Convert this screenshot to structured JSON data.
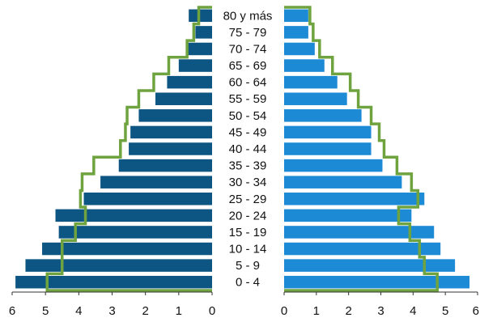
{
  "chart_data": {
    "type": "bar",
    "subtype": "population-pyramid",
    "title": "",
    "categories": [
      "80 y más",
      "75 - 79",
      "70 - 74",
      "65 - 69",
      "60 - 64",
      "55 - 59",
      "50 - 54",
      "45 - 49",
      "40 - 44",
      "35 - 39",
      "30 - 34",
      "25 - 29",
      "20 - 24",
      "15 - 19",
      "10 - 14",
      "5 - 9",
      "0 - 4"
    ],
    "left_panel": {
      "bars": [
        0.7,
        0.5,
        0.75,
        1.0,
        1.35,
        1.7,
        2.2,
        2.45,
        2.5,
        2.8,
        3.35,
        3.85,
        4.7,
        4.6,
        5.1,
        5.6,
        5.9
      ],
      "outline": [
        0.4,
        0.55,
        0.75,
        1.3,
        1.75,
        2.2,
        2.55,
        2.6,
        2.75,
        3.55,
        3.9,
        3.95,
        3.8,
        4.1,
        4.5,
        4.5,
        4.95
      ],
      "xlim": [
        0,
        6
      ],
      "direction": "reversed",
      "ticks": [
        "6",
        "5",
        "4",
        "3",
        "2",
        "1",
        "0"
      ]
    },
    "right_panel": {
      "bars": [
        0.75,
        0.75,
        0.95,
        1.25,
        1.65,
        1.95,
        2.4,
        2.7,
        2.7,
        3.05,
        3.65,
        4.35,
        3.95,
        4.65,
        4.85,
        5.3,
        5.75
      ],
      "outline": [
        0.8,
        0.9,
        1.1,
        1.5,
        2.05,
        2.3,
        2.7,
        2.95,
        3.1,
        3.5,
        3.95,
        4.15,
        3.55,
        3.9,
        4.2,
        4.35,
        4.75
      ],
      "xlim": [
        0,
        6
      ],
      "direction": "normal",
      "ticks": [
        "0",
        "1",
        "2",
        "3",
        "4",
        "5",
        "6"
      ]
    },
    "colors": {
      "left_bar": "#0d5582",
      "right_bar": "#1c8ad4",
      "outline": "#6fa33f"
    },
    "xlabel": "",
    "ylabel": "",
    "grid": false,
    "legend": "none"
  }
}
